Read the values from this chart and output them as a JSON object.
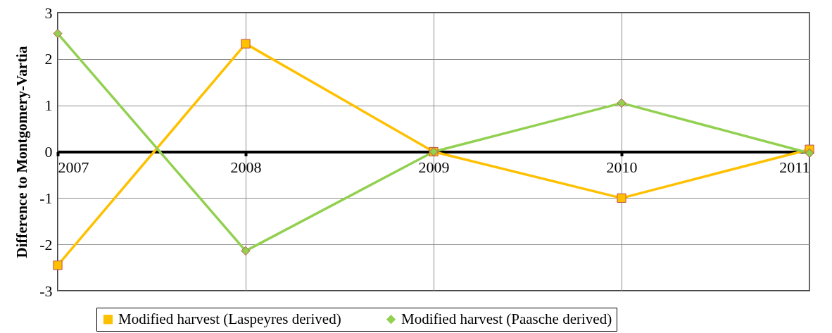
{
  "chart_data": {
    "type": "line",
    "ylabel": "Difference to Montgomery-Vartia",
    "x": [
      2007,
      2008,
      2009,
      2010,
      2011
    ],
    "xlim": [
      2007,
      2011
    ],
    "xticks": [
      2007,
      2008,
      2009,
      2010,
      2011
    ],
    "ylim": [
      -3,
      3
    ],
    "yticks": [
      -3,
      -2,
      -1,
      0,
      1,
      2,
      3
    ],
    "grid": true,
    "legend": "bottom",
    "series": [
      {
        "name": "Modified harvest (Laspeyres derived)",
        "color": "#ffc000",
        "marker": "square",
        "values": [
          -2.45,
          2.33,
          0,
          -1.0,
          0.05
        ]
      },
      {
        "name": "Modified harvest (Paasche derived)",
        "color": "#92d050",
        "marker": "diamond",
        "values": [
          2.55,
          -2.14,
          0,
          1.05,
          -0.03
        ]
      }
    ]
  }
}
